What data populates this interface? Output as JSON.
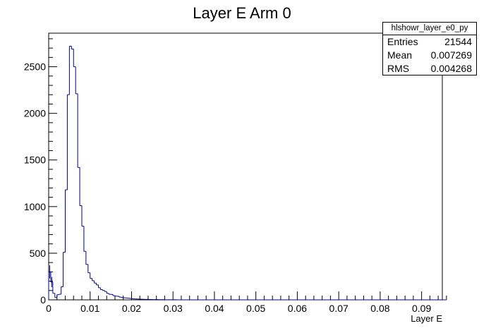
{
  "chart_data": {
    "type": "histogram",
    "title": "Layer E Arm 0",
    "xlabel": "Layer E",
    "ylabel": "",
    "xlim": [
      0,
      0.095
    ],
    "ylim": [
      0,
      2860
    ],
    "xticks": [
      0,
      0.01,
      0.02,
      0.03,
      0.04,
      0.05,
      0.06,
      0.07,
      0.08,
      0.09
    ],
    "xtick_labels": [
      "0",
      "0.01",
      "0.02",
      "0.03",
      "0.04",
      "0.05",
      "0.06",
      "0.07",
      "0.08",
      "0.09"
    ],
    "yticks": [
      0,
      500,
      1000,
      1500,
      2000,
      2500
    ],
    "ytick_labels": [
      "0",
      "500",
      "1000",
      "1500",
      "2000",
      "2500"
    ],
    "bin_width": 0.0005,
    "series": [
      {
        "values": [
          300,
          190,
          70,
          25,
          55,
          60,
          140,
          510,
          1180,
          2200,
          2720,
          2690,
          2500,
          2210,
          1420,
          1010,
          790,
          520,
          380,
          290,
          230,
          205,
          180,
          160,
          130,
          110,
          100,
          90,
          70,
          60,
          58,
          45,
          40,
          38,
          30,
          25,
          22,
          20,
          18,
          15,
          12,
          10,
          9,
          8,
          7,
          6,
          5,
          5,
          4,
          4,
          3,
          3,
          3,
          2,
          2,
          2,
          1,
          1,
          1,
          1,
          1,
          1,
          0,
          0,
          0,
          0,
          0,
          0,
          0,
          0,
          0,
          0,
          0,
          0,
          0,
          0,
          0,
          0,
          0,
          0,
          0,
          0,
          0,
          0,
          0,
          0,
          0,
          0,
          0,
          0,
          0,
          0,
          0,
          0,
          0,
          0,
          0,
          0,
          0,
          0,
          0,
          0,
          0,
          0,
          0,
          0,
          0,
          0,
          0,
          0,
          0,
          0,
          0,
          0,
          0,
          0,
          0,
          0,
          0,
          0,
          0,
          0,
          0,
          0,
          0,
          0,
          0,
          0,
          0,
          0,
          0,
          0,
          0,
          0,
          0,
          0,
          0,
          0,
          0,
          0,
          0,
          0,
          0,
          0,
          0,
          0,
          0,
          0,
          0,
          0,
          0,
          0,
          0,
          0,
          0,
          0,
          0,
          0,
          0,
          0,
          0,
          0,
          0,
          0,
          0,
          0,
          0,
          0,
          0,
          0,
          0,
          0,
          0,
          0,
          0,
          0,
          0,
          0,
          0,
          0,
          0,
          0,
          0,
          0,
          0,
          0,
          0,
          0,
          0,
          0,
          0,
          0
        ]
      }
    ],
    "line_color": "#000080",
    "stats": {
      "name": "hlshowr_layer_e0_py",
      "rows": [
        {
          "label": "Entries",
          "value": "21544"
        },
        {
          "label": "Mean",
          "value": "0.007269"
        },
        {
          "label": "RMS",
          "value": "0.004268"
        }
      ]
    },
    "grid": false,
    "legend": "top-right"
  }
}
